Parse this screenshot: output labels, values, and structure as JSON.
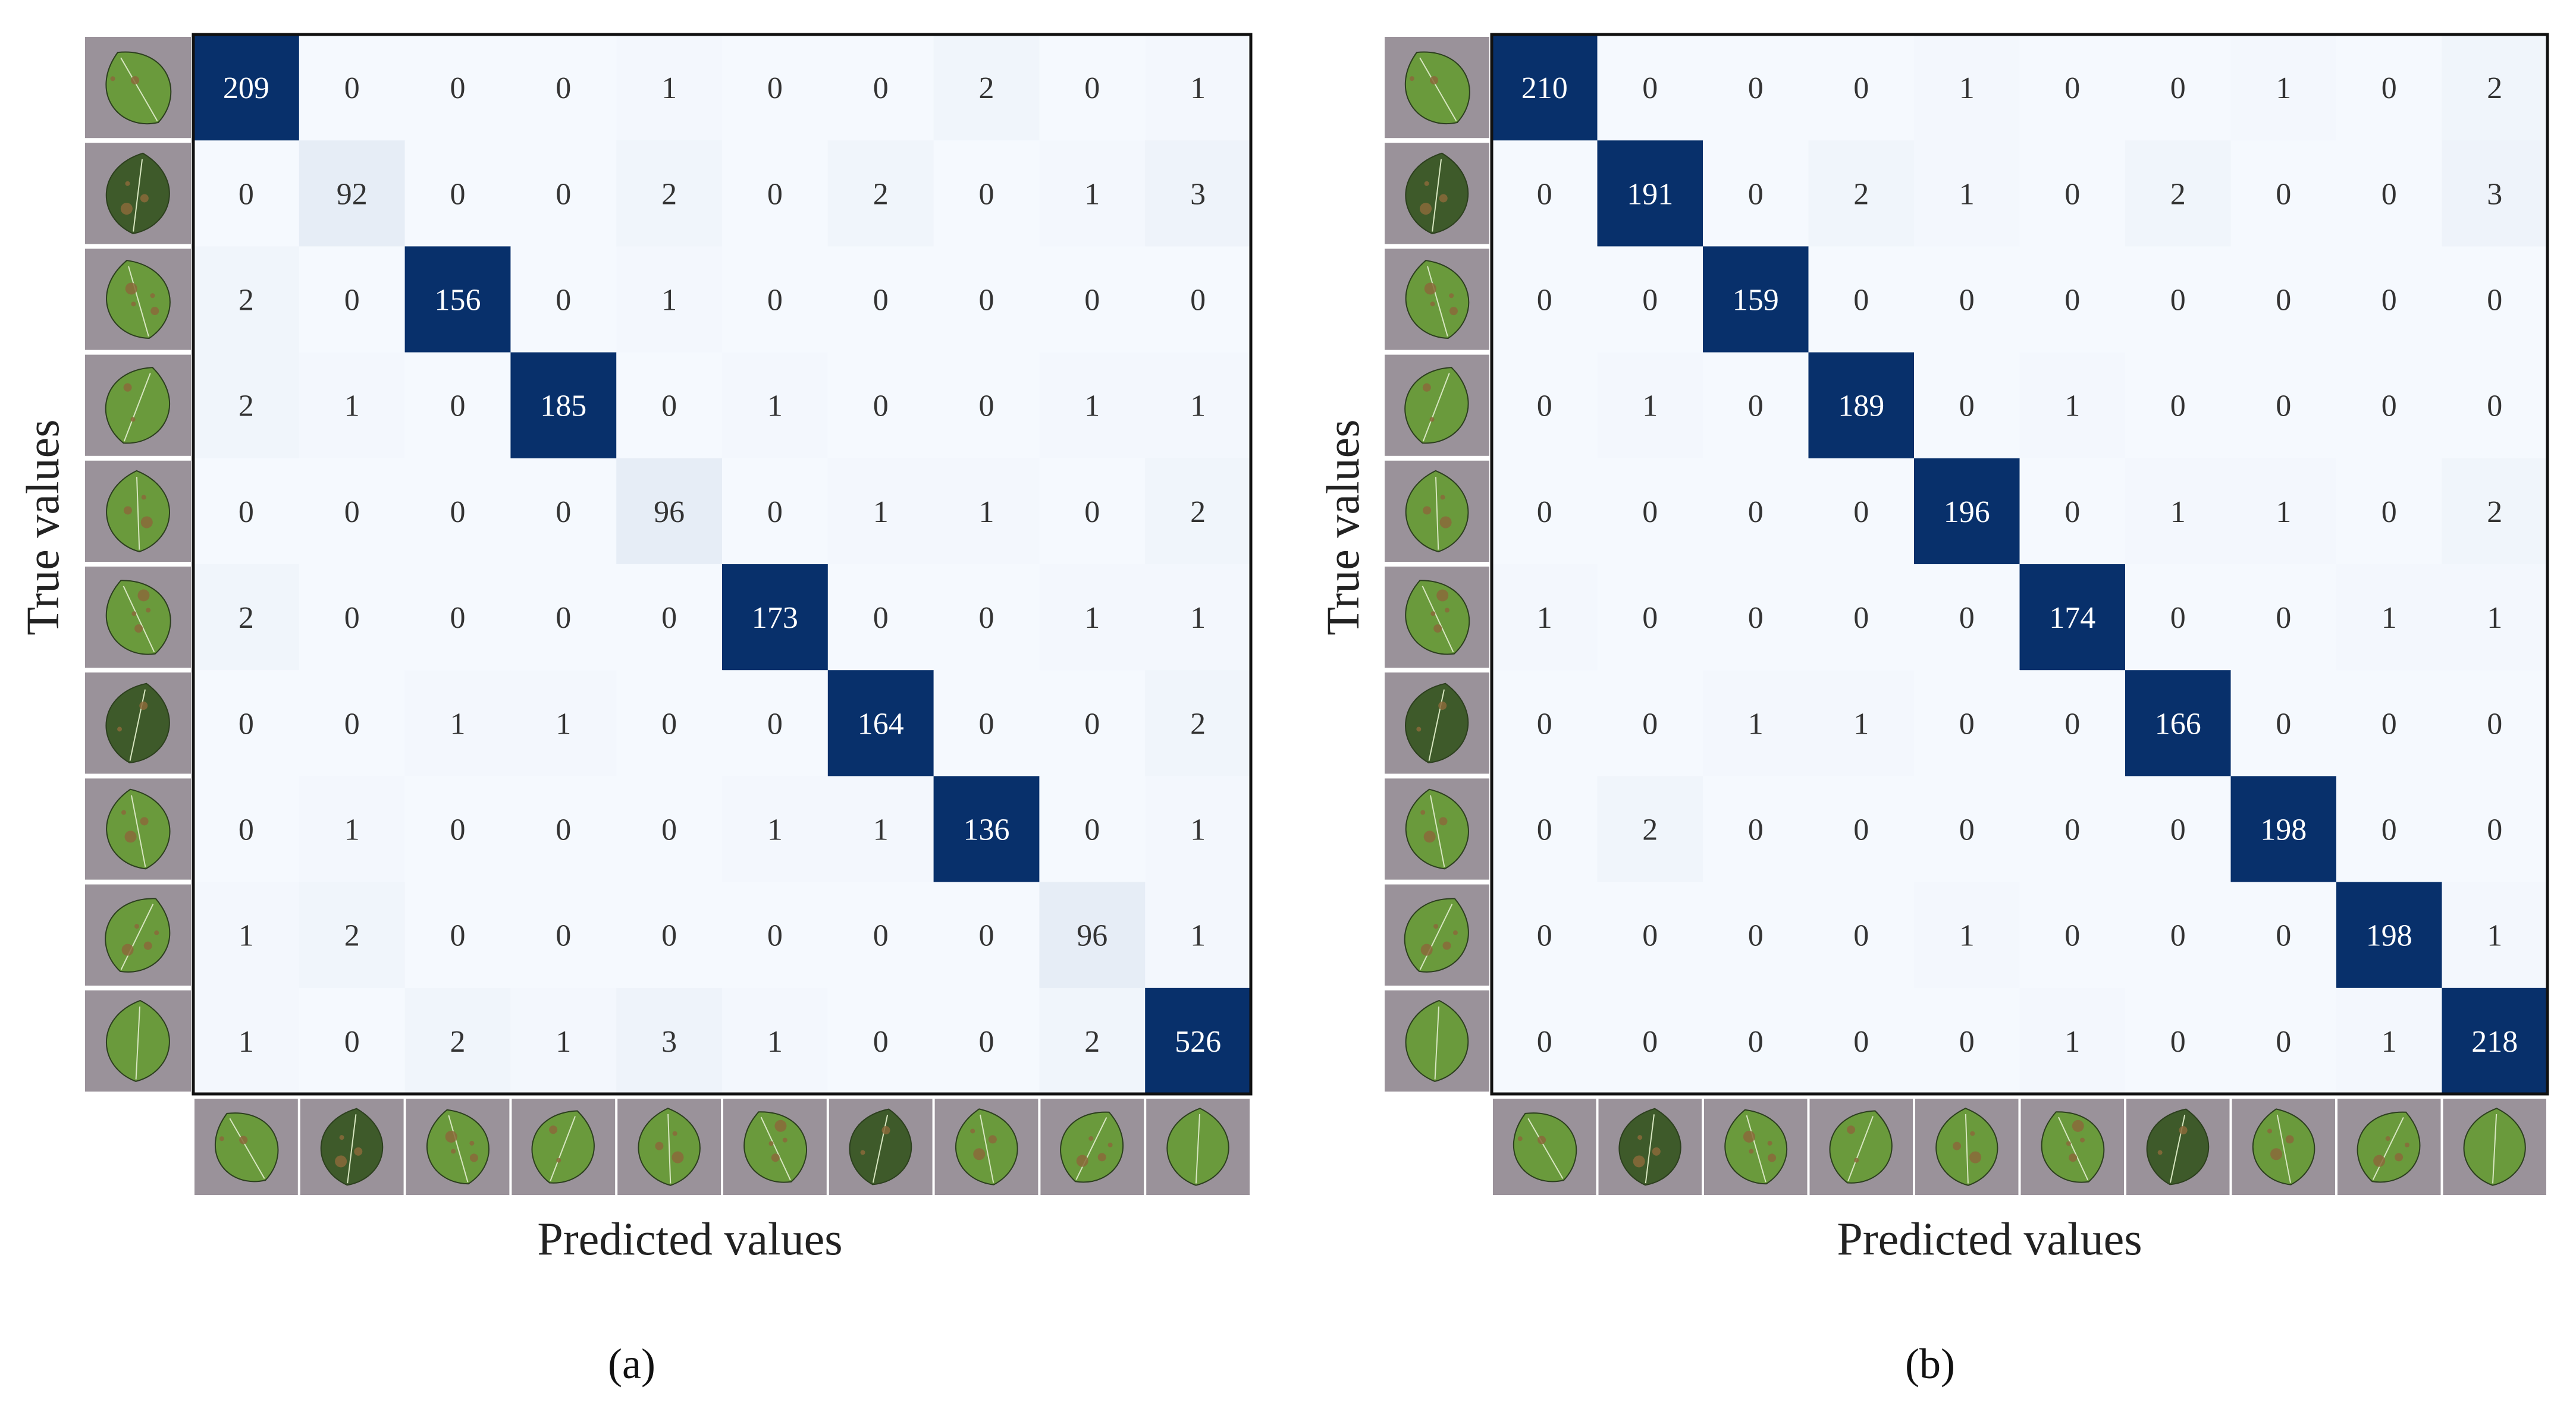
{
  "colors": {
    "cell_low": "#f5f9fe",
    "cell_high": "#08306b",
    "text_dark": "#333333",
    "text_light": "#ffffff",
    "frame": "#111111",
    "thumb_bg": "#9a929a",
    "leaf_healthy": "#6a9a3c",
    "leaf_dark": "#3e5a2a",
    "leaf_spot": "#8a6a3a"
  },
  "class_icons": [
    "leaf-bacterial-spot-icon",
    "leaf-early-blight-icon",
    "leaf-late-blight-icon",
    "leaf-mold-icon",
    "leaf-septoria-spot-icon",
    "leaf-spider-mite-icon",
    "leaf-target-spot-icon",
    "leaf-mosaic-virus-icon",
    "leaf-yellow-curl-icon",
    "leaf-healthy-icon"
  ],
  "chart_data": [
    {
      "type": "heatmap",
      "panel_label": "(a)",
      "xlabel": "Predicted values",
      "ylabel": "True values",
      "matrix": [
        [
          209,
          0,
          0,
          0,
          1,
          0,
          0,
          2,
          0,
          1
        ],
        [
          0,
          92,
          0,
          0,
          2,
          0,
          2,
          0,
          1,
          3
        ],
        [
          2,
          0,
          156,
          0,
          1,
          0,
          0,
          0,
          0,
          0
        ],
        [
          2,
          1,
          0,
          185,
          0,
          1,
          0,
          0,
          1,
          1
        ],
        [
          0,
          0,
          0,
          0,
          96,
          0,
          1,
          1,
          0,
          2
        ],
        [
          2,
          0,
          0,
          0,
          0,
          173,
          0,
          0,
          1,
          1
        ],
        [
          0,
          0,
          1,
          1,
          0,
          0,
          164,
          0,
          0,
          2
        ],
        [
          0,
          1,
          0,
          0,
          0,
          1,
          1,
          136,
          0,
          1
        ],
        [
          1,
          2,
          0,
          0,
          0,
          0,
          0,
          0,
          96,
          1
        ],
        [
          1,
          0,
          2,
          1,
          3,
          1,
          0,
          0,
          2,
          526
        ]
      ]
    },
    {
      "type": "heatmap",
      "panel_label": "(b)",
      "xlabel": "Predicted values",
      "ylabel": "True values",
      "matrix": [
        [
          210,
          0,
          0,
          0,
          1,
          0,
          0,
          1,
          0,
          2
        ],
        [
          0,
          191,
          0,
          2,
          1,
          0,
          2,
          0,
          0,
          3
        ],
        [
          0,
          0,
          159,
          0,
          0,
          0,
          0,
          0,
          0,
          0
        ],
        [
          0,
          1,
          0,
          189,
          0,
          1,
          0,
          0,
          0,
          0
        ],
        [
          0,
          0,
          0,
          0,
          196,
          0,
          1,
          1,
          0,
          2
        ],
        [
          1,
          0,
          0,
          0,
          0,
          174,
          0,
          0,
          1,
          1
        ],
        [
          0,
          0,
          1,
          1,
          0,
          0,
          166,
          0,
          0,
          0
        ],
        [
          0,
          2,
          0,
          0,
          0,
          0,
          0,
          198,
          0,
          0
        ],
        [
          0,
          0,
          0,
          0,
          1,
          0,
          0,
          0,
          198,
          1
        ],
        [
          0,
          0,
          0,
          0,
          0,
          1,
          0,
          0,
          1,
          218
        ]
      ]
    }
  ]
}
